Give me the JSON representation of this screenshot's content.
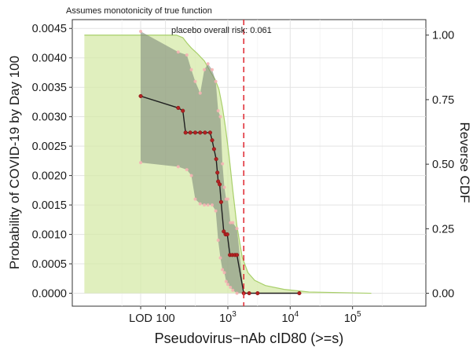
{
  "chart_data": {
    "type": "line",
    "subtitle": "Assumes monotonicity of true function",
    "annotation": "placebo overall risk: 0.061",
    "xlabel_base": "Pseudovirus−nAb cID80 (>=s)",
    "ylabel_left": "Probability of COVID-19 by Day 100",
    "ylabel_right": "Reverse CDF",
    "x_scale": "log10",
    "xlim": [
      3.2,
      1500000
    ],
    "ylim_left": [
      -0.00022,
      0.00465
    ],
    "ylim_right": [
      -0.05,
      1.06
    ],
    "grid": true,
    "x_ticks": [
      {
        "value": 40,
        "label": "LOD"
      },
      {
        "value": 100,
        "label": "100"
      },
      {
        "value": 1000,
        "label": "10",
        "exp": "3"
      },
      {
        "value": 10000,
        "label": "10",
        "exp": "4"
      },
      {
        "value": 100000,
        "label": "10",
        "exp": "5"
      }
    ],
    "y_ticks_left": [
      "0.0000",
      "0.0005",
      "0.0010",
      "0.0015",
      "0.0020",
      "0.0025",
      "0.0030",
      "0.0035",
      "0.0040",
      "0.0045"
    ],
    "y_tick_values_left": [
      0,
      0.0005,
      0.001,
      0.0015,
      0.002,
      0.0025,
      0.003,
      0.0035,
      0.004,
      0.0045
    ],
    "y_ticks_right": [
      "0.00",
      "0.25",
      "0.50",
      "0.75",
      "1.00"
    ],
    "y_tick_values_right": [
      0,
      0.25,
      0.5,
      0.75,
      1.0
    ],
    "reference_line_x": 1800,
    "reverse_cdf": {
      "x": [
        5,
        40,
        150,
        190,
        220,
        260,
        320,
        420,
        520,
        620,
        720,
        820,
        920,
        1050,
        1200,
        1400,
        1700,
        2100,
        2700,
        4000,
        8000,
        20000,
        200000
      ],
      "y": [
        1.0,
        1.0,
        1.0,
        0.99,
        0.97,
        0.95,
        0.93,
        0.9,
        0.86,
        0.83,
        0.79,
        0.72,
        0.64,
        0.53,
        0.4,
        0.26,
        0.14,
        0.08,
        0.05,
        0.03,
        0.015,
        0.005,
        0.0
      ]
    },
    "risk_curve": {
      "x": [
        40,
        160,
        190,
        210,
        250,
        300,
        360,
        430,
        520,
        560,
        600,
        650,
        680,
        700,
        740,
        780,
        860,
        920,
        980,
        1080,
        1180,
        1300,
        1400,
        1800,
        2200,
        3000,
        14000
      ],
      "y": [
        0.00335,
        0.00315,
        0.0031,
        0.00273,
        0.00273,
        0.00273,
        0.00273,
        0.00273,
        0.00273,
        0.0026,
        0.00245,
        0.00228,
        0.00205,
        0.0019,
        0.00185,
        0.00155,
        0.00105,
        0.001,
        0.001,
        0.00065,
        0.00065,
        0.00065,
        0.00065,
        0.0,
        0.0,
        0.0,
        0.0
      ]
    },
    "ci_upper": {
      "x": [
        40,
        160,
        220,
        260,
        300,
        360,
        420,
        480,
        560,
        640,
        700,
        760,
        820,
        880,
        940,
        1000,
        1100,
        1200,
        1400,
        1800
      ],
      "y": [
        0.00445,
        0.0041,
        0.00405,
        0.0038,
        0.0036,
        0.0034,
        0.0038,
        0.0039,
        0.0038,
        0.0036,
        0.0031,
        0.003,
        0.0022,
        0.0018,
        0.0016,
        0.0016,
        0.0012,
        0.0012,
        0.0011,
        0.0
      ]
    },
    "ci_lower": {
      "x": [
        40,
        160,
        220,
        260,
        300,
        360,
        420,
        480,
        560,
        640,
        700,
        760,
        820,
        880,
        940,
        1000,
        1100,
        1200,
        1400,
        1800
      ],
      "y": [
        0.00222,
        0.00215,
        0.0021,
        0.002,
        0.0016,
        0.00152,
        0.0015,
        0.0015,
        0.0015,
        0.0014,
        0.0009,
        0.0006,
        0.0004,
        0.00035,
        0.0002,
        0.00015,
        0.0001,
        5e-05,
        0.0,
        0.0
      ]
    }
  }
}
